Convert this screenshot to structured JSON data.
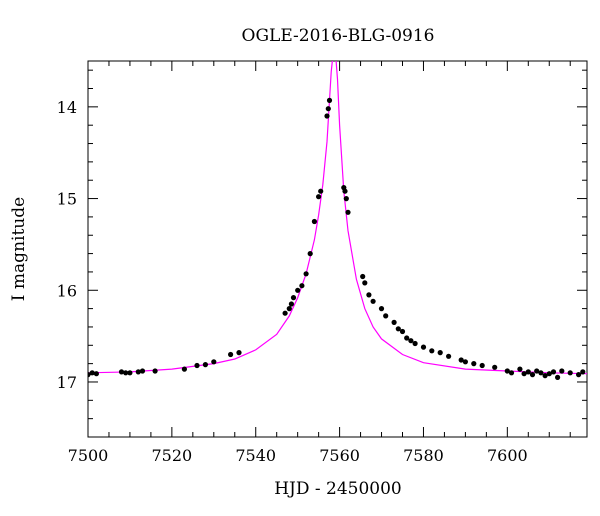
{
  "chart_data": {
    "type": "scatter",
    "title": "OGLE-2016-BLG-0916",
    "xlabel": "HJD - 2450000",
    "ylabel": "I magnitude",
    "xlim": [
      7500,
      7619
    ],
    "ylim": [
      17.6,
      13.5
    ],
    "y_inverted": true,
    "x_ticks": [
      7500,
      7520,
      7540,
      7560,
      7580,
      7600
    ],
    "x_tick_labels": [
      "7500",
      "7520",
      "7540",
      "7560",
      "7580",
      "7600"
    ],
    "y_ticks": [
      14,
      15,
      16,
      17
    ],
    "y_tick_labels": [
      "14",
      "15",
      "16",
      "17"
    ],
    "grid": false,
    "colors": {
      "model": "#ff00ff",
      "points": "#000000",
      "axes": "#000000"
    },
    "model": {
      "name": "",
      "x": [
        7500,
        7510,
        7520,
        7530,
        7535,
        7540,
        7545,
        7548,
        7550,
        7552,
        7554,
        7555,
        7556,
        7557,
        7557.5,
        7558,
        7558.5,
        7559,
        7559.5,
        7560,
        7561,
        7562,
        7564,
        7566,
        7568,
        7570,
        7575,
        7580,
        7590,
        7600,
        7610,
        7619
      ],
      "y": [
        16.9,
        16.89,
        16.86,
        16.8,
        16.75,
        16.65,
        16.48,
        16.28,
        16.08,
        15.82,
        15.45,
        15.18,
        14.85,
        14.38,
        14.0,
        13.62,
        13.4,
        13.4,
        13.7,
        14.2,
        14.92,
        15.35,
        15.88,
        16.2,
        16.4,
        16.53,
        16.7,
        16.79,
        16.86,
        16.88,
        16.9,
        16.91
      ]
    },
    "points": {
      "name": "",
      "x": [
        7500,
        7501,
        7502,
        7508,
        7509,
        7510,
        7512,
        7513,
        7516,
        7523,
        7526,
        7528,
        7530,
        7534,
        7536,
        7547,
        7548,
        7548.5,
        7549,
        7550,
        7551,
        7552,
        7553,
        7554,
        7555,
        7555.5,
        7557,
        7557.3,
        7557.6,
        7561,
        7561.3,
        7561.6,
        7562,
        7565.5,
        7566,
        7567,
        7568,
        7570,
        7571,
        7573,
        7574,
        7575,
        7576,
        7577,
        7578,
        7580,
        7582,
        7584,
        7586,
        7589,
        7590,
        7592,
        7594,
        7597,
        7600,
        7601,
        7603,
        7604,
        7605,
        7606,
        7607,
        7608,
        7609,
        7610,
        7611,
        7612,
        7613,
        7615,
        7617,
        7618
      ],
      "y": [
        16.92,
        16.9,
        16.91,
        16.89,
        16.9,
        16.9,
        16.89,
        16.88,
        16.88,
        16.86,
        16.82,
        16.81,
        16.78,
        16.7,
        16.68,
        16.25,
        16.2,
        16.15,
        16.08,
        16.0,
        15.95,
        15.82,
        15.6,
        15.25,
        14.98,
        14.92,
        14.1,
        14.02,
        13.93,
        14.88,
        14.92,
        15.0,
        15.15,
        15.85,
        15.92,
        16.05,
        16.12,
        16.2,
        16.28,
        16.35,
        16.42,
        16.45,
        16.52,
        16.55,
        16.58,
        16.62,
        16.66,
        16.68,
        16.72,
        16.76,
        16.78,
        16.8,
        16.82,
        16.84,
        16.88,
        16.9,
        16.86,
        16.91,
        16.89,
        16.92,
        16.88,
        16.9,
        16.93,
        16.91,
        16.89,
        16.95,
        16.88,
        16.9,
        16.92,
        16.89
      ]
    }
  }
}
